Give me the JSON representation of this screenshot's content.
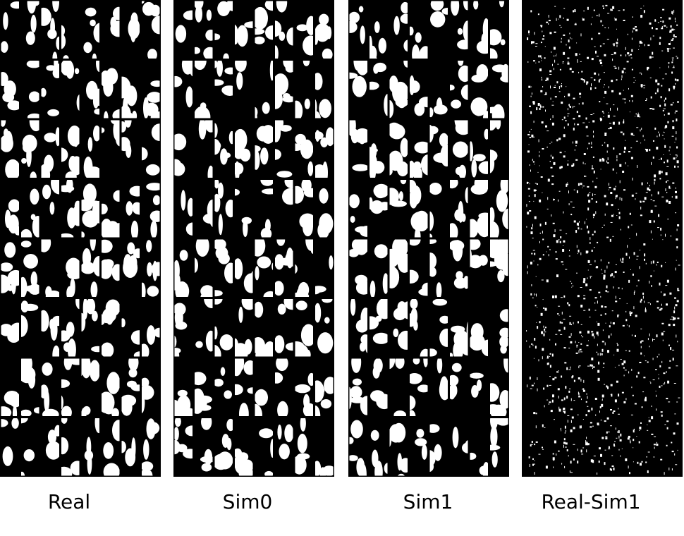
{
  "panels": [
    {
      "id": "real",
      "caption": "Real",
      "style": "pattern",
      "seed": 11
    },
    {
      "id": "sim0",
      "caption": "Sim0",
      "style": "pattern",
      "seed": 23
    },
    {
      "id": "sim1",
      "caption": "Sim1",
      "style": "pattern",
      "seed": 37
    },
    {
      "id": "diff",
      "caption": "Real-Sim1",
      "style": "difference",
      "seed": 53
    }
  ],
  "colors": {
    "foreground": "#ffffff",
    "background": "#000000",
    "divider": "#000000"
  }
}
